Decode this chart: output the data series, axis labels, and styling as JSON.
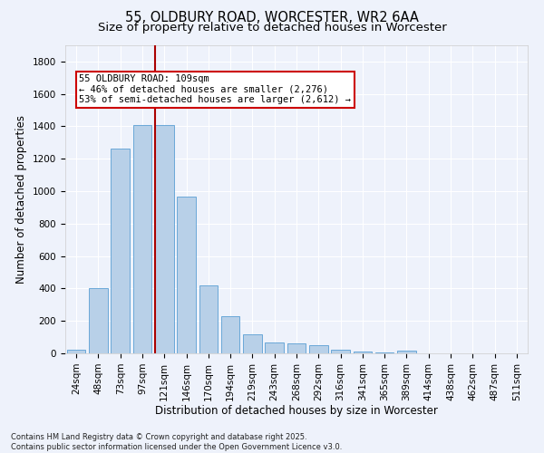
{
  "title": "55, OLDBURY ROAD, WORCESTER, WR2 6AA",
  "subtitle": "Size of property relative to detached houses in Worcester",
  "xlabel": "Distribution of detached houses by size in Worcester",
  "ylabel": "Number of detached properties",
  "footnote1": "Contains HM Land Registry data © Crown copyright and database right 2025.",
  "footnote2": "Contains public sector information licensed under the Open Government Licence v3.0.",
  "categories": [
    "24sqm",
    "48sqm",
    "73sqm",
    "97sqm",
    "121sqm",
    "146sqm",
    "170sqm",
    "194sqm",
    "219sqm",
    "243sqm",
    "268sqm",
    "292sqm",
    "316sqm",
    "341sqm",
    "365sqm",
    "389sqm",
    "414sqm",
    "438sqm",
    "462sqm",
    "487sqm",
    "511sqm"
  ],
  "values": [
    25,
    400,
    1265,
    1410,
    1410,
    965,
    420,
    230,
    120,
    65,
    60,
    48,
    20,
    12,
    5,
    15,
    2,
    0,
    0,
    0,
    0
  ],
  "bar_color": "#b8d0e8",
  "bar_edge_color": "#5a9fd4",
  "property_line_x": 3.575,
  "property_line_color": "#aa0000",
  "annotation_text": "55 OLDBURY ROAD: 109sqm\n← 46% of detached houses are smaller (2,276)\n53% of semi-detached houses are larger (2,612) →",
  "annotation_box_facecolor": "#ffffff",
  "annotation_box_edgecolor": "#cc0000",
  "ylim": [
    0,
    1900
  ],
  "yticks": [
    0,
    200,
    400,
    600,
    800,
    1000,
    1200,
    1400,
    1600,
    1800
  ],
  "background_color": "#eef2fb",
  "grid_color": "#ffffff",
  "title_fontsize": 10.5,
  "subtitle_fontsize": 9.5,
  "ylabel_fontsize": 8.5,
  "xlabel_fontsize": 8.5,
  "tick_fontsize": 7.5,
  "annotation_fontsize": 7.5,
  "footnote_fontsize": 6.0
}
